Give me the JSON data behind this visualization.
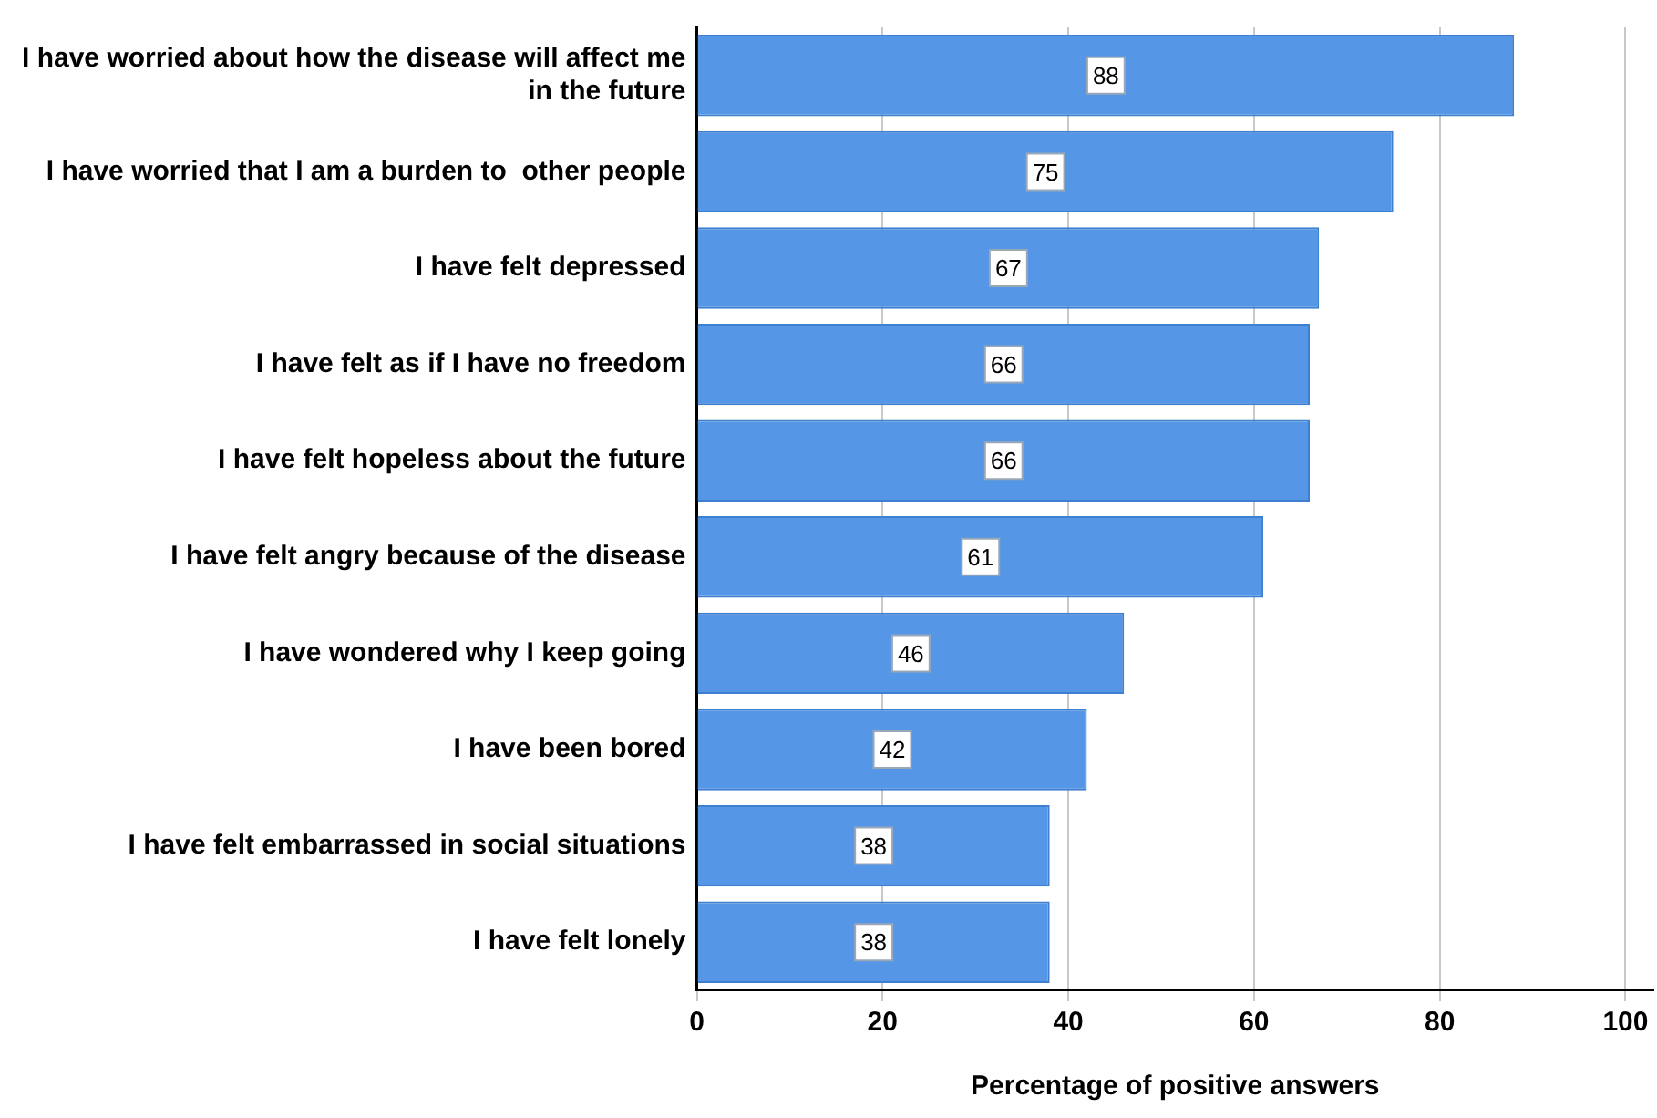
{
  "chart_data": {
    "type": "bar",
    "orientation": "horizontal",
    "xlabel": "Percentage of positive answers",
    "categories": [
      "I have worried about how the disease will affect me in the future",
      "I have worried that I am a burden to  other people",
      "I have felt depressed",
      "I have felt as if I have no freedom",
      "I have felt hopeless about the future",
      "I have felt angry because of the disease",
      "I have wondered why I keep going",
      "I have been bored",
      "I have felt embarrassed in social situations",
      "I have felt lonely"
    ],
    "values": [
      88,
      75,
      67,
      66,
      66,
      61,
      46,
      42,
      38,
      38
    ],
    "color": "#5597e6",
    "xlim": [
      0,
      103
    ],
    "xticks": [
      0,
      20,
      40,
      60,
      80,
      100
    ],
    "grid": "x",
    "data_labels": true,
    "legend": false
  }
}
